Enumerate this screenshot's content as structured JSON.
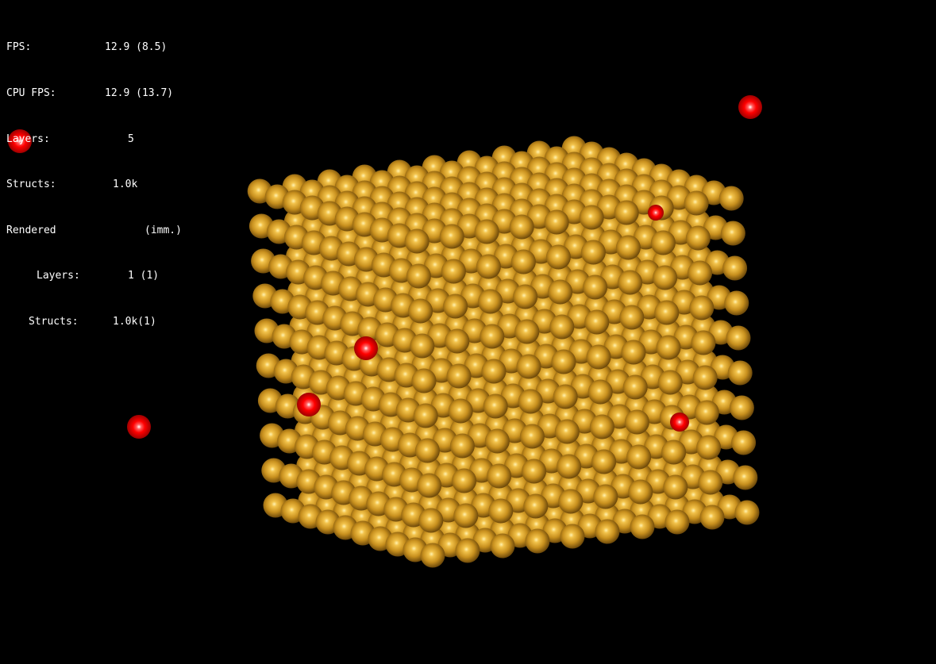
{
  "colors": {
    "background": "#000000",
    "text": "#ffffff",
    "atom_gold": "#c8901e",
    "atom_red": "#ff0000"
  },
  "stats": [
    {
      "label": "FPS:",
      "value": "12.9 (8.5)"
    },
    {
      "label": "CPU FPS:",
      "value": "12.9 (13.7)"
    },
    {
      "label": "Layers:",
      "value": "5"
    },
    {
      "label": "Structs:",
      "value": "1.0k"
    },
    {
      "label": "Rendered",
      "value": "(imm.)"
    },
    {
      "label": "Layers:",
      "value": "1 (1)"
    },
    {
      "label": "Structs:",
      "value": "1.0k(1)"
    }
  ],
  "scene": {
    "gold_atom_count": 1000,
    "red_atom_count": 7
  }
}
